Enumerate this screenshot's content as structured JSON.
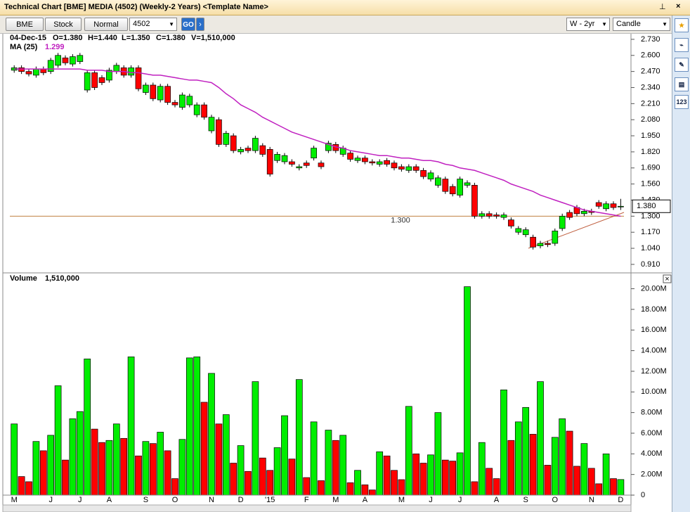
{
  "window": {
    "title": "Technical Chart [BME] MEDIA (4502) (Weekly-2 Years) <Template Name>",
    "buttons": [
      "BME",
      "Stock",
      "Normal"
    ],
    "code": "4502",
    "go": "GO",
    "period": "W - 2yr",
    "style": "Candle",
    "side_label": "123"
  },
  "header": {
    "date": "04-Dec-15",
    "open": "O=1.380",
    "high": "H=1.440",
    "low": "L=1.350",
    "close": "C=1.380",
    "volume": "V=1,510,000",
    "ma_label": "MA (25)",
    "ma_value": "1.299",
    "volume_title": "Volume",
    "volume_value": "1,510,000"
  },
  "chart_data": {
    "type": "candlestick",
    "categories": [
      "M",
      null,
      null,
      null,
      null,
      "J",
      null,
      null,
      null,
      "J",
      null,
      null,
      null,
      "A",
      null,
      null,
      null,
      null,
      "S",
      null,
      null,
      null,
      "O",
      null,
      null,
      null,
      null,
      "N",
      null,
      null,
      null,
      "D",
      null,
      null,
      null,
      "'15",
      null,
      null,
      null,
      null,
      "F",
      null,
      null,
      null,
      "M",
      null,
      null,
      null,
      "A",
      null,
      null,
      null,
      null,
      "M",
      null,
      null,
      null,
      "J",
      null,
      null,
      null,
      "J",
      null,
      null,
      null,
      null,
      "A",
      null,
      null,
      null,
      "S",
      null,
      null,
      null,
      "O",
      null,
      null,
      null,
      null,
      "N",
      null,
      null,
      null,
      "D"
    ],
    "open": [
      2.48,
      2.5,
      2.47,
      2.44,
      2.49,
      2.47,
      2.52,
      2.58,
      2.53,
      2.55,
      2.32,
      2.46,
      2.42,
      2.4,
      2.47,
      2.5,
      2.44,
      2.5,
      2.3,
      2.36,
      2.24,
      2.35,
      2.22,
      2.18,
      2.2,
      2.12,
      2.2,
      1.99,
      2.08,
      1.88,
      1.95,
      1.82,
      1.85,
      1.83,
      1.87,
      1.84,
      1.75,
      1.74,
      1.74,
      1.69,
      1.73,
      1.77,
      1.73,
      1.83,
      1.88,
      1.8,
      1.81,
      1.75,
      1.77,
      1.74,
      1.72,
      1.75,
      1.73,
      1.7,
      1.67,
      1.7,
      1.67,
      1.6,
      1.55,
      1.6,
      1.54,
      1.47,
      1.55,
      1.55,
      1.3,
      1.32,
      1.31,
      1.29,
      1.27,
      1.17,
      1.15,
      1.13,
      1.06,
      1.08,
      1.08,
      1.2,
      1.33,
      1.37,
      1.32,
      1.34,
      1.41,
      1.36,
      1.4,
      1.38
    ],
    "high": [
      2.52,
      2.52,
      2.49,
      2.51,
      2.51,
      2.58,
      2.62,
      2.6,
      2.61,
      2.62,
      2.48,
      2.48,
      2.44,
      2.5,
      2.54,
      2.52,
      2.52,
      2.52,
      2.38,
      2.38,
      2.37,
      2.37,
      2.24,
      2.3,
      2.29,
      2.22,
      2.22,
      2.12,
      2.1,
      1.99,
      1.97,
      1.86,
      1.87,
      1.95,
      1.89,
      1.86,
      1.82,
      1.81,
      1.76,
      1.72,
      1.75,
      1.87,
      1.75,
      1.91,
      1.9,
      1.87,
      1.83,
      1.79,
      1.79,
      1.76,
      1.76,
      1.77,
      1.75,
      1.72,
      1.72,
      1.72,
      1.69,
      1.67,
      1.63,
      1.62,
      1.56,
      1.62,
      1.59,
      1.57,
      1.34,
      1.34,
      1.33,
      1.33,
      1.29,
      1.22,
      1.21,
      1.15,
      1.1,
      1.1,
      1.2,
      1.32,
      1.35,
      1.39,
      1.36,
      1.36,
      1.43,
      1.42,
      1.42,
      1.44
    ],
    "low": [
      2.46,
      2.45,
      2.43,
      2.42,
      2.44,
      2.45,
      2.5,
      2.52,
      2.51,
      2.53,
      2.3,
      2.32,
      2.36,
      2.38,
      2.45,
      2.42,
      2.42,
      2.31,
      2.28,
      2.23,
      2.22,
      2.2,
      2.18,
      2.16,
      2.18,
      2.1,
      2.08,
      1.97,
      1.86,
      1.86,
      1.81,
      1.8,
      1.81,
      1.81,
      1.78,
      1.62,
      1.73,
      1.72,
      1.7,
      1.67,
      1.69,
      1.75,
      1.68,
      1.81,
      1.81,
      1.78,
      1.74,
      1.73,
      1.72,
      1.71,
      1.7,
      1.7,
      1.67,
      1.66,
      1.65,
      1.65,
      1.6,
      1.58,
      1.53,
      1.48,
      1.46,
      1.45,
      1.53,
      1.28,
      1.28,
      1.28,
      1.28,
      1.27,
      1.2,
      1.15,
      1.13,
      1.03,
      1.04,
      1.05,
      1.06,
      1.18,
      1.27,
      1.3,
      1.3,
      1.31,
      1.36,
      1.34,
      1.35,
      1.35
    ],
    "close": [
      2.5,
      2.47,
      2.45,
      2.49,
      2.46,
      2.56,
      2.6,
      2.54,
      2.59,
      2.6,
      2.46,
      2.34,
      2.38,
      2.48,
      2.52,
      2.44,
      2.5,
      2.33,
      2.36,
      2.25,
      2.35,
      2.22,
      2.2,
      2.28,
      2.27,
      2.2,
      2.1,
      2.1,
      1.88,
      1.97,
      1.83,
      1.84,
      1.83,
      1.93,
      1.8,
      1.64,
      1.8,
      1.79,
      1.72,
      1.7,
      1.71,
      1.85,
      1.7,
      1.89,
      1.83,
      1.85,
      1.76,
      1.77,
      1.74,
      1.73,
      1.74,
      1.72,
      1.69,
      1.68,
      1.7,
      1.67,
      1.62,
      1.65,
      1.61,
      1.5,
      1.48,
      1.6,
      1.57,
      1.3,
      1.32,
      1.3,
      1.3,
      1.31,
      1.22,
      1.2,
      1.19,
      1.05,
      1.08,
      1.07,
      1.18,
      1.3,
      1.29,
      1.32,
      1.34,
      1.33,
      1.38,
      1.4,
      1.37,
      1.38
    ],
    "up_color": "#00ee00",
    "down_color": "#ff0000",
    "ma": {
      "name": "MA (25)",
      "color": "#c020c0",
      "values": [
        2.49,
        2.49,
        2.49,
        2.49,
        2.49,
        2.49,
        2.49,
        2.49,
        2.49,
        2.49,
        2.48,
        2.48,
        2.48,
        2.47,
        2.47,
        2.47,
        2.46,
        2.46,
        2.45,
        2.44,
        2.44,
        2.43,
        2.42,
        2.41,
        2.4,
        2.4,
        2.39,
        2.38,
        2.34,
        2.29,
        2.25,
        2.2,
        2.17,
        2.14,
        2.1,
        2.07,
        2.04,
        2.01,
        1.98,
        1.96,
        1.94,
        1.92,
        1.9,
        1.88,
        1.86,
        1.85,
        1.83,
        1.82,
        1.81,
        1.8,
        1.79,
        1.79,
        1.78,
        1.77,
        1.77,
        1.76,
        1.75,
        1.75,
        1.74,
        1.72,
        1.71,
        1.69,
        1.68,
        1.67,
        1.65,
        1.63,
        1.61,
        1.59,
        1.56,
        1.54,
        1.52,
        1.5,
        1.47,
        1.45,
        1.43,
        1.41,
        1.39,
        1.37,
        1.35,
        1.34,
        1.33,
        1.32,
        1.31,
        1.299
      ]
    },
    "ylim": [
      0.847,
      2.775
    ],
    "yticks": [
      {
        "value": 0.91,
        "label": "0.910"
      },
      {
        "value": 1.04,
        "label": "1.040"
      },
      {
        "value": 1.17,
        "label": "1.170"
      },
      {
        "value": 1.3,
        "label": "1.300"
      },
      {
        "value": 1.43,
        "label": "1.430"
      },
      {
        "value": 1.56,
        "label": "1.560"
      },
      {
        "value": 1.69,
        "label": "1.690"
      },
      {
        "value": 1.82,
        "label": "1.820"
      },
      {
        "value": 1.95,
        "label": "1.950"
      },
      {
        "value": 2.08,
        "label": "2.080"
      },
      {
        "value": 2.21,
        "label": "2.210"
      },
      {
        "value": 2.34,
        "label": "2.340"
      },
      {
        "value": 2.47,
        "label": "2.470"
      },
      {
        "value": 2.6,
        "label": "2.600"
      },
      {
        "value": 2.73,
        "label": "2.730"
      }
    ],
    "hline": {
      "value": 1.3,
      "label": "1.300",
      "color": "#c08040"
    },
    "last_price": {
      "value": 1.38,
      "label": "1.380"
    },
    "volume": {
      "values": [
        6900000,
        1800000,
        1300000,
        5200000,
        4300000,
        5800000,
        10600000,
        3400000,
        7400000,
        8100000,
        13200000,
        6400000,
        5100000,
        5300000,
        6900000,
        5500000,
        13400000,
        3800000,
        5200000,
        5000000,
        6100000,
        4300000,
        1600000,
        5400000,
        13300000,
        13400000,
        9000000,
        11800000,
        6900000,
        7800000,
        3100000,
        4800000,
        2300000,
        11000000,
        3600000,
        2400000,
        4600000,
        7700000,
        3500000,
        11200000,
        1700000,
        7100000,
        1400000,
        6300000,
        5300000,
        5800000,
        1200000,
        2400000,
        1000000,
        500000,
        4200000,
        3800000,
        2400000,
        1500000,
        8600000,
        4000000,
        3100000,
        3900000,
        8000000,
        3400000,
        3300000,
        4100000,
        20200000,
        1300000,
        5100000,
        2600000,
        1600000,
        10200000,
        5300000,
        7100000,
        8500000,
        5900000,
        11000000,
        2900000,
        5600000,
        7400000,
        6200000,
        2800000,
        5000000,
        2600000,
        1100000,
        4000000,
        1600000,
        1510000
      ],
      "ylim": [
        0,
        21400000
      ],
      "yticks": [
        0,
        {
          "value": 2000000,
          "label": "2.00M"
        },
        {
          "value": 4000000,
          "label": "4.00M"
        },
        {
          "value": 6000000,
          "label": "6.00M"
        },
        {
          "value": 8000000,
          "label": "8.00M"
        },
        {
          "value": 10000000,
          "label": "10.00M"
        },
        {
          "value": 12000000,
          "label": "12.00M"
        },
        {
          "value": 14000000,
          "label": "14.00M"
        },
        {
          "value": 16000000,
          "label": "16.00M"
        },
        {
          "value": 18000000,
          "label": "18.00M"
        },
        {
          "value": 20000000,
          "label": "20.00M"
        }
      ]
    }
  }
}
